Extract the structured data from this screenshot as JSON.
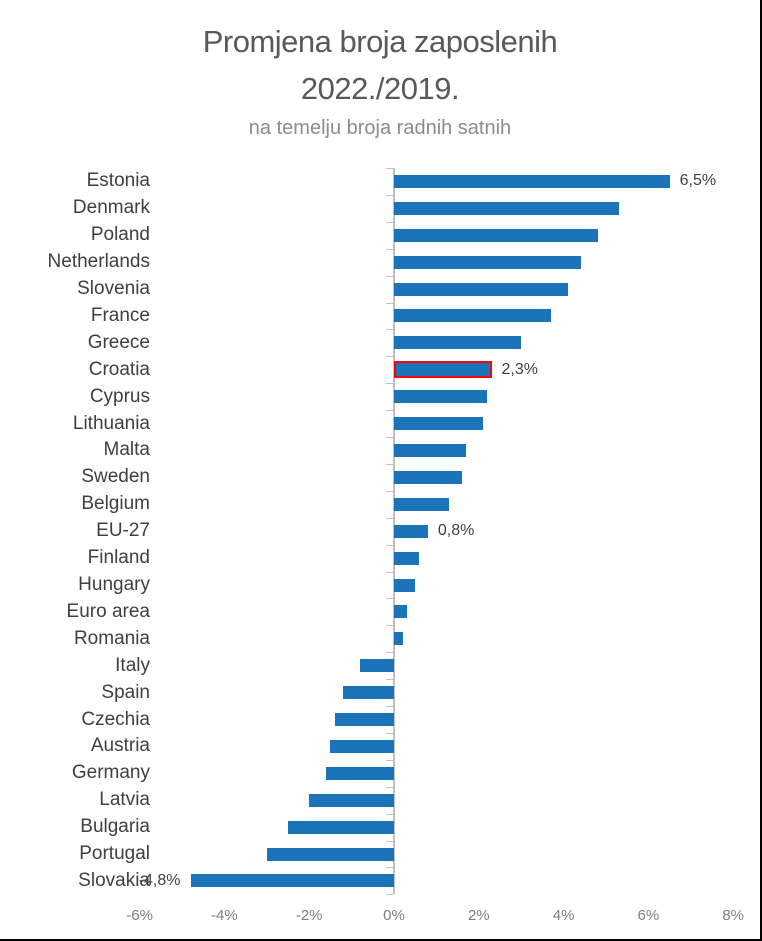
{
  "header": {
    "title_line1": "Promjena broja zaposlenih",
    "title_line2": "2022./2019.",
    "subtitle": "na temelju broja radnih satnih"
  },
  "colors": {
    "bar": "#1b73b9",
    "highlight_border": "#ff0000",
    "title_text": "#595959",
    "subtitle_text": "#8c8c8c",
    "category_text": "#3f3f3f",
    "axis_text": "#7f7f7f",
    "axis_line": "#c0c0c0"
  },
  "chart_data": {
    "type": "bar",
    "orientation": "horizontal",
    "title": "Promjena broja zaposlenih 2022./2019.",
    "subtitle": "na temelju broja radnih satnih",
    "unit": "%",
    "categories": [
      "Estonia",
      "Denmark",
      "Poland",
      "Netherlands",
      "Slovenia",
      "France",
      "Greece",
      "Croatia",
      "Cyprus",
      "Lithuania",
      "Malta",
      "Sweden",
      "Belgium",
      "EU-27",
      "Finland",
      "Hungary",
      "Euro area",
      "Romania",
      "Italy",
      "Spain",
      "Czechia",
      "Austria",
      "Germany",
      "Latvia",
      "Bulgaria",
      "Portugal",
      "Slovakia"
    ],
    "values": [
      6.5,
      5.3,
      4.8,
      4.4,
      4.1,
      3.7,
      3.0,
      2.3,
      2.2,
      2.1,
      1.7,
      1.6,
      1.3,
      0.8,
      0.6,
      0.5,
      0.3,
      0.2,
      -0.8,
      -1.2,
      -1.4,
      -1.5,
      -1.6,
      -2.0,
      -2.5,
      -3.0,
      -4.8
    ],
    "highlighted_category": "Croatia",
    "data_labels": [
      {
        "category": "Estonia",
        "text": "6,5%",
        "side": "right"
      },
      {
        "category": "Croatia",
        "text": "2,3%",
        "side": "right"
      },
      {
        "category": "EU-27",
        "text": "0,8%",
        "side": "right"
      },
      {
        "category": "Slovakia",
        "text": "-4,8%",
        "side": "left"
      }
    ],
    "x_ticks": [
      {
        "value": -6,
        "label": "-6%"
      },
      {
        "value": -4,
        "label": "-4%"
      },
      {
        "value": -2,
        "label": "-2%"
      },
      {
        "value": 0,
        "label": "0%"
      },
      {
        "value": 2,
        "label": "2%"
      },
      {
        "value": 4,
        "label": "4%"
      },
      {
        "value": 6,
        "label": "6%"
      },
      {
        "value": 8,
        "label": "8%"
      }
    ],
    "xlim": [
      -6,
      8
    ],
    "grid": false,
    "legend": false
  }
}
